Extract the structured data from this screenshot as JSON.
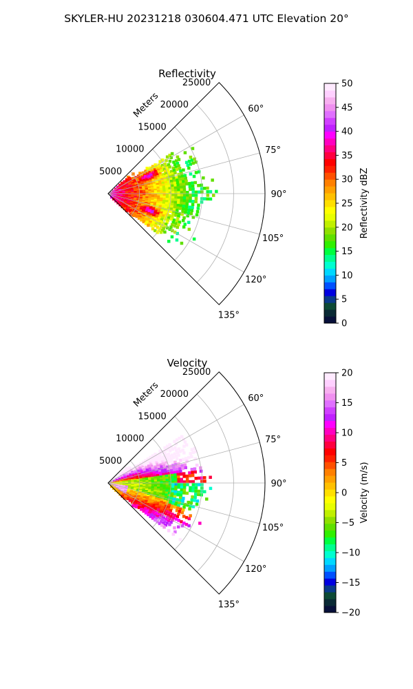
{
  "suptitle": "SKYLER-HU  20231218  030604.471 UTC Elevation 20°",
  "chart_data": [
    {
      "type": "heatmap",
      "title": "Reflectivity",
      "radial_label": "Meters",
      "radial_ticks": [
        5000,
        10000,
        15000,
        20000,
        25000
      ],
      "radial_tick_labels": [
        "5000",
        "10000",
        "15000",
        "20000",
        "25000"
      ],
      "angle_ticks_deg": [
        60,
        75,
        90,
        105,
        120,
        135
      ],
      "angle_tick_labels": [
        "60°",
        "75°",
        "90°",
        "105°",
        "120°",
        "135°"
      ],
      "theta_range_deg": [
        45,
        135
      ],
      "r_range": [
        0,
        25000
      ],
      "colorbar": {
        "label": "Reflectivity dBZ",
        "range": [
          0,
          50
        ],
        "ticks": [
          0,
          5,
          10,
          15,
          20,
          25,
          30,
          35,
          40,
          45,
          50
        ],
        "tick_labels": [
          "0",
          "5",
          "10",
          "15",
          "20",
          "25",
          "30",
          "35",
          "40",
          "45",
          "50"
        ],
        "colors": [
          "#08103a",
          "#0a2a35",
          "#0d4a35",
          "#0a3a8a",
          "#0000e0",
          "#0050ff",
          "#00a0ff",
          "#00d8ff",
          "#00ffd0",
          "#00ff90",
          "#00ff40",
          "#30f000",
          "#60e000",
          "#90e000",
          "#c0f000",
          "#e8ff00",
          "#ffff00",
          "#ffe000",
          "#ffc000",
          "#ffa000",
          "#ff8000",
          "#ff5000",
          "#ff2000",
          "#ff0000",
          "#ff0040",
          "#ff0080",
          "#ff00c0",
          "#ff00ff",
          "#c020ff",
          "#d040ff",
          "#e070ff",
          "#f090f0",
          "#f8b0f0",
          "#ffd0ff",
          "#ffeaff"
        ]
      }
    },
    {
      "type": "heatmap",
      "title": "Velocity",
      "radial_label": "Meters",
      "radial_ticks": [
        5000,
        10000,
        15000,
        20000,
        25000
      ],
      "radial_tick_labels": [
        "5000",
        "10000",
        "15000",
        "20000",
        "25000"
      ],
      "angle_ticks_deg": [
        60,
        75,
        90,
        105,
        120,
        135
      ],
      "angle_tick_labels": [
        "60°",
        "75°",
        "90°",
        "105°",
        "120°",
        "135°"
      ],
      "theta_range_deg": [
        45,
        135
      ],
      "r_range": [
        0,
        25000
      ],
      "colorbar": {
        "label": "Velocity (m/s)",
        "range": [
          -20,
          20
        ],
        "ticks": [
          -20,
          -15,
          -10,
          -5,
          0,
          5,
          10,
          15,
          20
        ],
        "tick_labels": [
          "−20",
          "−15",
          "−10",
          "−5",
          "0",
          "5",
          "10",
          "15",
          "20"
        ],
        "colors": [
          "#08103a",
          "#0a2a35",
          "#0d4a35",
          "#0a3a8a",
          "#0000e0",
          "#0050ff",
          "#00a0ff",
          "#00d8ff",
          "#00ffd0",
          "#00ff90",
          "#00ff40",
          "#30f000",
          "#60e000",
          "#90e000",
          "#c0f000",
          "#e8ff00",
          "#ffff00",
          "#ffe000",
          "#ffc000",
          "#ffa000",
          "#ff8000",
          "#ff5000",
          "#ff2000",
          "#ff0000",
          "#ff0040",
          "#ff0080",
          "#ff00c0",
          "#ff00ff",
          "#c020ff",
          "#d040ff",
          "#e070ff",
          "#f090f0",
          "#f8b0f0",
          "#ffd0ff",
          "#ffeaff"
        ]
      }
    }
  ]
}
